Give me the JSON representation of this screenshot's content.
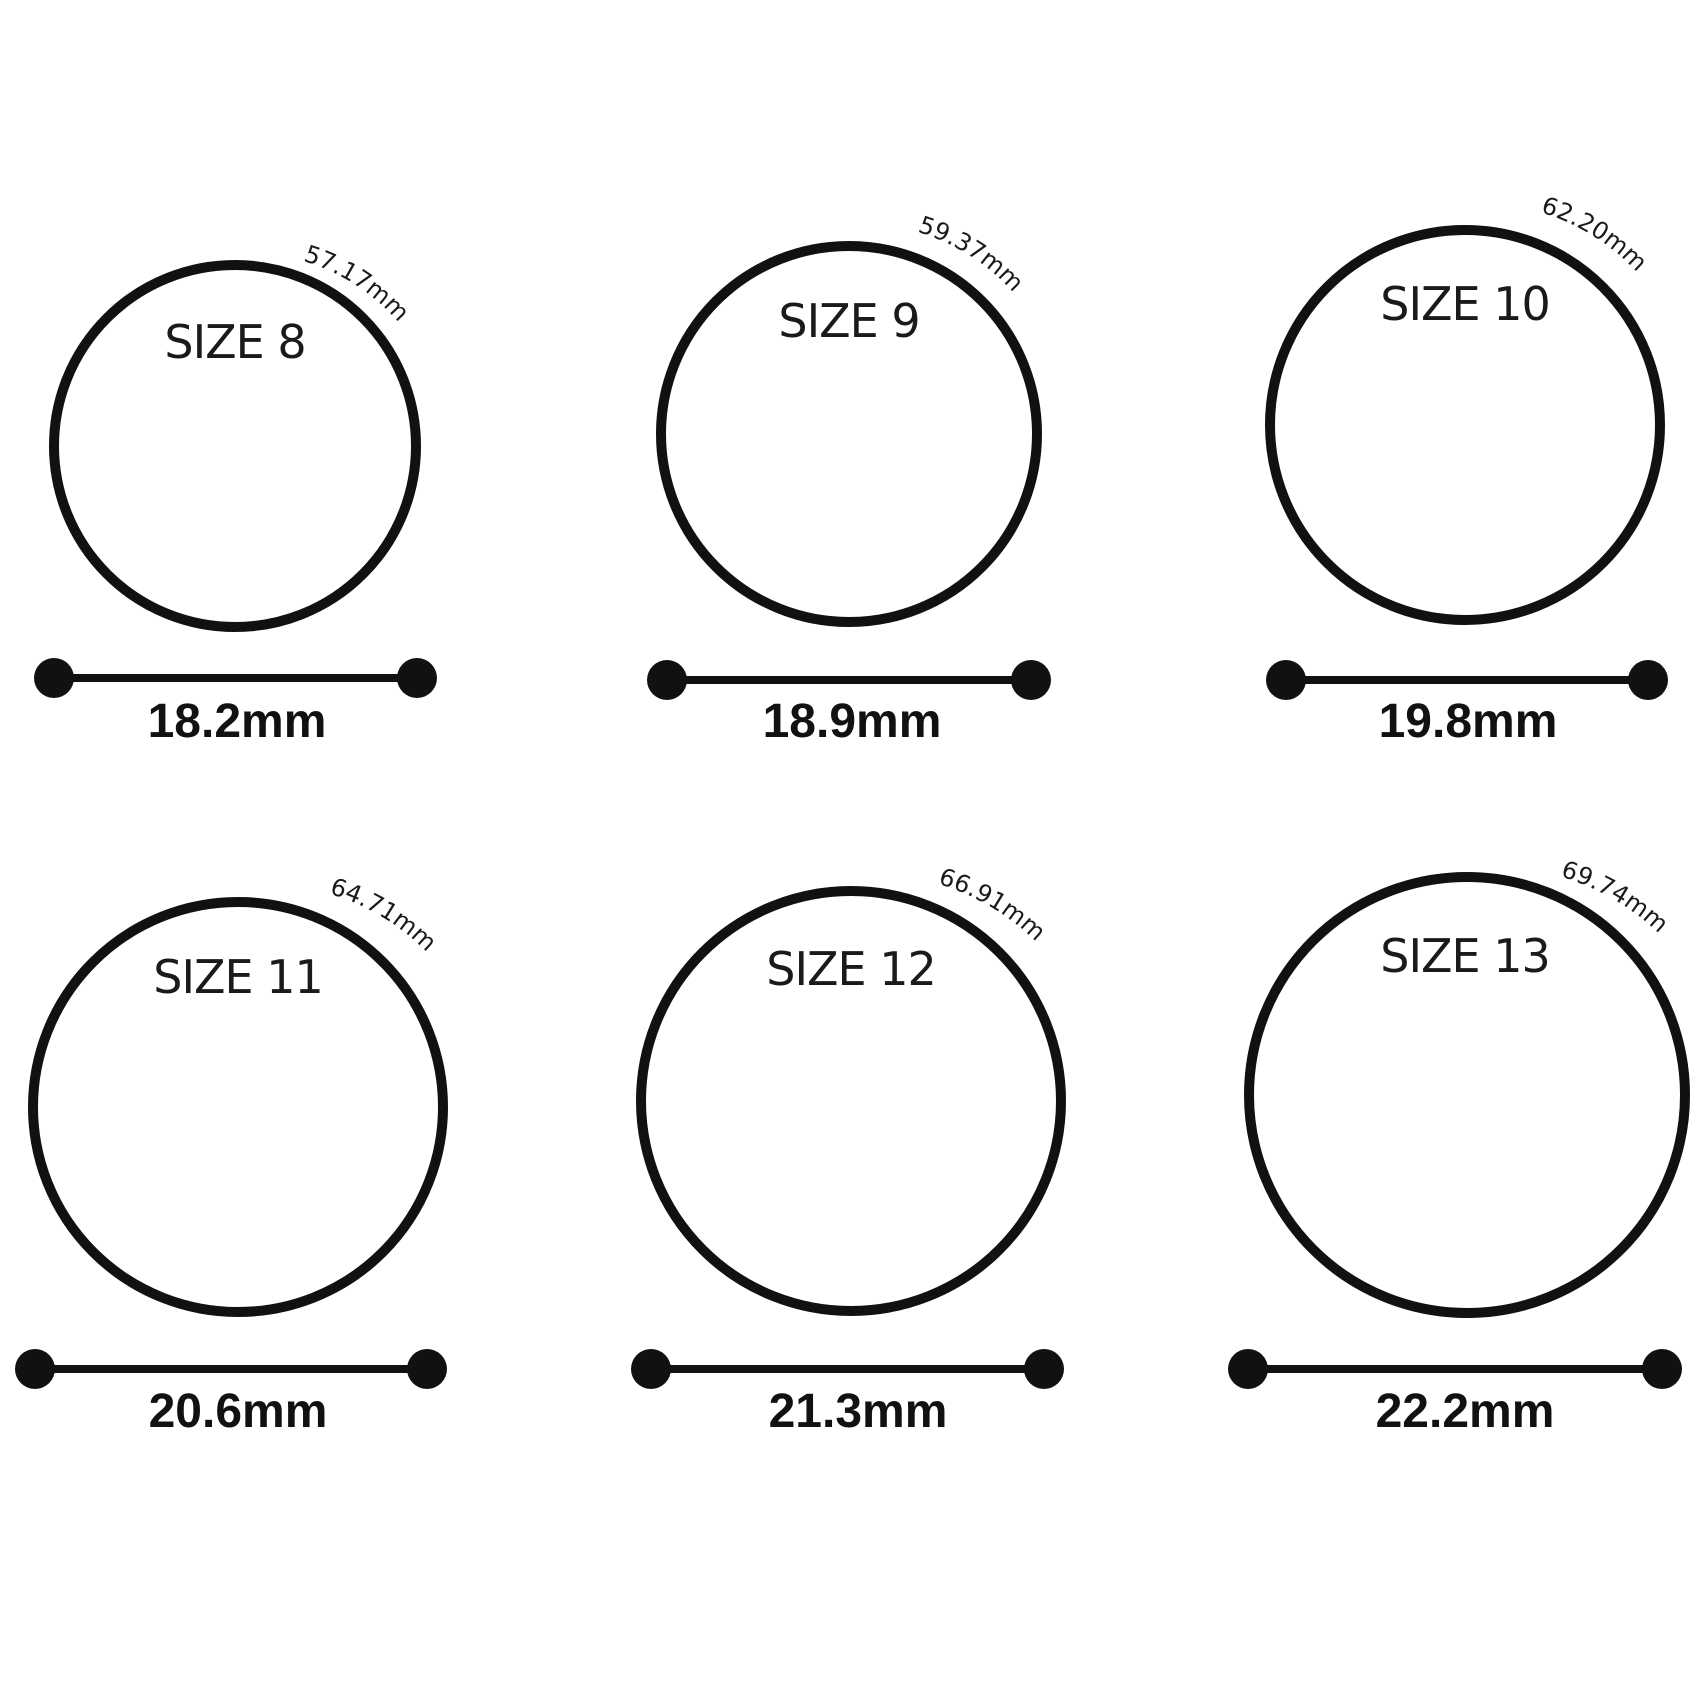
{
  "colors": {
    "ink": "#111111",
    "background": "#ffffff"
  },
  "rings": [
    {
      "size_label": "SIZE 8",
      "circumference_label": "57.17mm",
      "diameter_label": "18.2mm"
    },
    {
      "size_label": "SIZE 9",
      "circumference_label": "59.37mm",
      "diameter_label": "18.9mm"
    },
    {
      "size_label": "SIZE 10",
      "circumference_label": "62.20mm",
      "diameter_label": "19.8mm"
    },
    {
      "size_label": "SIZE 11",
      "circumference_label": "64.71mm",
      "diameter_label": "20.6mm"
    },
    {
      "size_label": "SIZE 12",
      "circumference_label": "66.91mm",
      "diameter_label": "21.3mm"
    },
    {
      "size_label": "SIZE 13",
      "circumference_label": "69.74mm",
      "diameter_label": "22.2mm"
    }
  ]
}
